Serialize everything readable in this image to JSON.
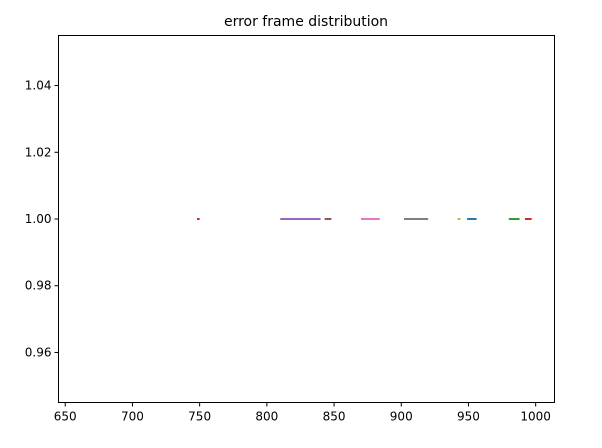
{
  "chart_data": {
    "type": "line",
    "title": "error frame distribution",
    "xlabel": "",
    "ylabel": "",
    "xlim": [
      645,
      1014
    ],
    "ylim": [
      0.945,
      1.055
    ],
    "x_ticks": [
      650,
      700,
      750,
      800,
      850,
      900,
      950,
      1000
    ],
    "x_tick_labels": [
      "650",
      "700",
      "750",
      "800",
      "850",
      "900",
      "950",
      "1000"
    ],
    "y_ticks": [
      0.96,
      0.98,
      1.0,
      1.02,
      1.04
    ],
    "y_tick_labels": [
      "0.96",
      "0.98",
      "1.00",
      "1.02",
      "1.04"
    ],
    "grid": false,
    "legend": false,
    "series": [
      {
        "x": [
          748,
          750
        ],
        "y": [
          1.0,
          1.0
        ],
        "color": "#d62728"
      },
      {
        "x": [
          810,
          840
        ],
        "y": [
          1.0,
          1.0
        ],
        "color": "#9467bd"
      },
      {
        "x": [
          843,
          848
        ],
        "y": [
          1.0,
          1.0
        ],
        "color": "#8c564b"
      },
      {
        "x": [
          870,
          884
        ],
        "y": [
          1.0,
          1.0
        ],
        "color": "#e377c2"
      },
      {
        "x": [
          902,
          920
        ],
        "y": [
          1.0,
          1.0
        ],
        "color": "#7f7f7f"
      },
      {
        "x": [
          942,
          944
        ],
        "y": [
          1.0,
          1.0
        ],
        "color": "#bcbd22"
      },
      {
        "x": [
          949,
          956
        ],
        "y": [
          1.0,
          1.0
        ],
        "color": "#1f77b4"
      },
      {
        "x": [
          980,
          988
        ],
        "y": [
          1.0,
          1.0
        ],
        "color": "#2ca02c"
      },
      {
        "x": [
          992,
          997
        ],
        "y": [
          1.0,
          1.0
        ],
        "color": "#d62728"
      }
    ]
  }
}
